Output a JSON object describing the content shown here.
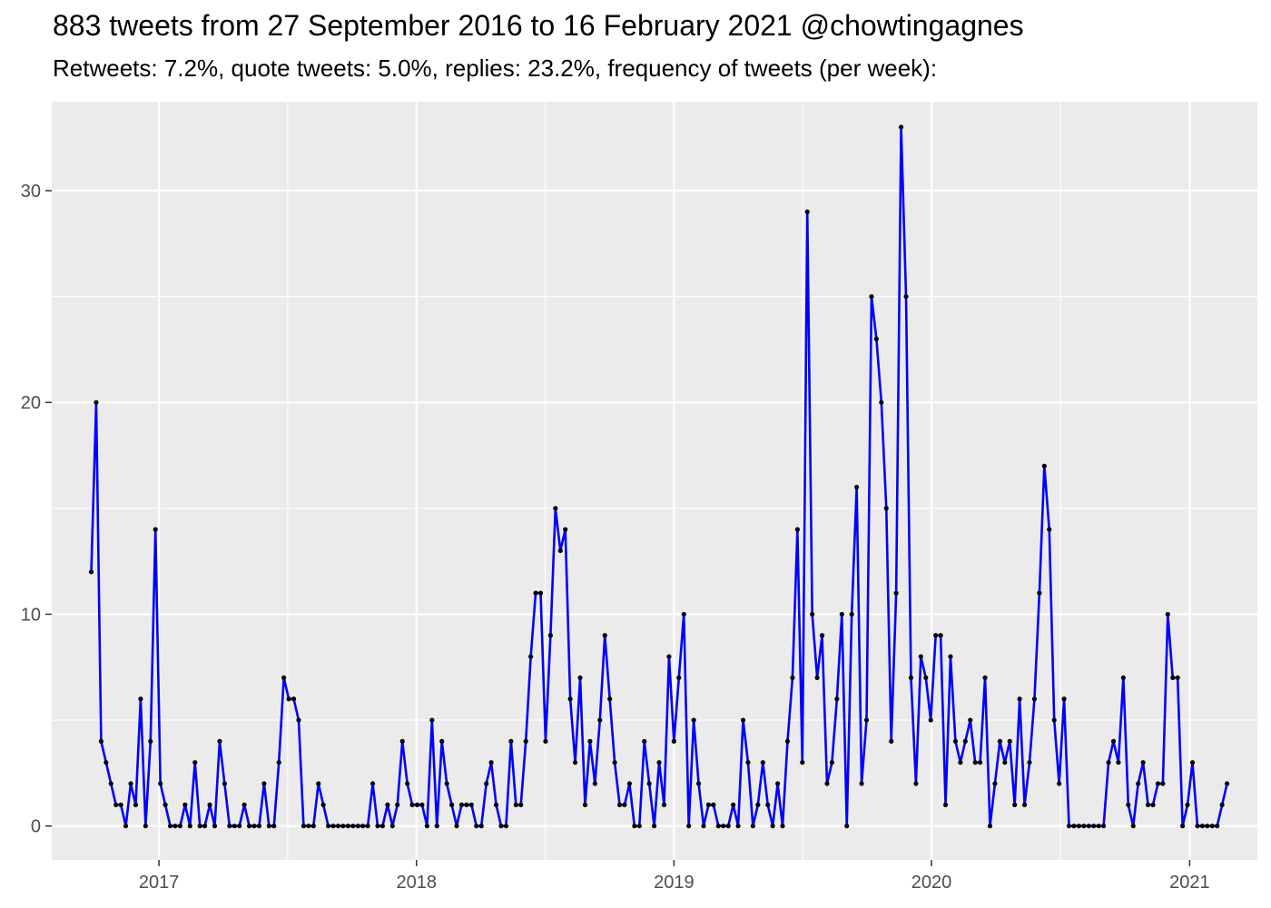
{
  "chart_data": {
    "type": "line",
    "title": "883 tweets from 27 September 2016 to 16 February 2021 @chowtingagnes",
    "subtitle": "Retweets: 7.2%, quote tweets: 5.0%, replies: 23.2%, frequency of tweets (per week):",
    "xlabel": "",
    "ylabel": "",
    "x_start": "2016-09-27",
    "x_interval": "1 week",
    "xlim": [
      "2016-08-02",
      "2021-04-07"
    ],
    "ylim": [
      -1.6,
      34.2
    ],
    "x_ticks": [
      "2017",
      "2018",
      "2019",
      "2020",
      "2021"
    ],
    "y_ticks": [
      "0",
      "10",
      "20",
      "30"
    ],
    "grid": true,
    "legend": "none",
    "colors": {
      "line": "#0000ff",
      "points": "#000000",
      "panel": "#ebebeb",
      "grid": "#ffffff"
    },
    "series": [
      {
        "values": [
          12,
          20,
          4,
          3,
          2,
          1,
          1,
          0,
          2,
          1,
          6,
          0,
          4,
          14,
          2,
          1,
          0,
          0,
          0,
          1,
          0,
          3,
          0,
          0,
          1,
          0,
          4,
          2,
          0,
          0,
          0,
          1,
          0,
          0,
          0,
          2,
          0,
          0,
          3,
          7,
          6,
          6,
          5,
          0,
          0,
          0,
          2,
          1,
          0,
          0,
          0,
          0,
          0,
          0,
          0,
          0,
          0,
          2,
          0,
          0,
          1,
          0,
          1,
          4,
          2,
          1,
          1,
          1,
          0,
          5,
          0,
          4,
          2,
          1,
          0,
          1,
          1,
          1,
          0,
          0,
          2,
          3,
          1,
          0,
          0,
          4,
          1,
          1,
          4,
          8,
          11,
          11,
          4,
          9,
          15,
          13,
          14,
          6,
          3,
          7,
          1,
          4,
          2,
          5,
          9,
          6,
          3,
          1,
          1,
          2,
          0,
          0,
          4,
          2,
          0,
          3,
          1,
          8,
          4,
          7,
          10,
          0,
          5,
          2,
          0,
          1,
          1,
          0,
          0,
          0,
          1,
          0,
          5,
          3,
          0,
          1,
          3,
          1,
          0,
          2,
          0,
          4,
          7,
          14,
          3,
          29,
          10,
          7,
          9,
          2,
          3,
          6,
          10,
          0,
          10,
          16,
          2,
          5,
          25,
          23,
          20,
          15,
          4,
          11,
          33,
          25,
          7,
          2,
          8,
          7,
          5,
          9,
          9,
          1,
          8,
          4,
          3,
          4,
          5,
          3,
          3,
          7,
          0,
          2,
          4,
          3,
          4,
          1,
          6,
          1,
          3,
          6,
          11,
          17,
          14,
          5,
          2,
          6,
          0,
          0,
          0,
          0,
          0,
          0,
          0,
          0,
          3,
          4,
          3,
          7,
          1,
          0,
          2,
          3,
          1,
          1,
          2,
          2,
          10,
          7,
          7,
          0,
          1,
          3,
          0,
          0,
          0,
          0,
          0,
          1,
          2
        ]
      }
    ]
  }
}
